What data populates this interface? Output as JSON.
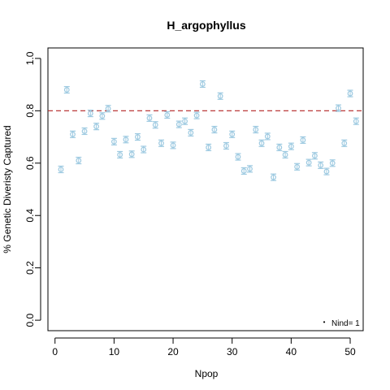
{
  "chart_data": {
    "type": "scatter",
    "title": "H_argophyllus",
    "xlabel": "Npop",
    "ylabel": "% Genetic Diveristy Captured",
    "xlim": [
      -1.2,
      52.2
    ],
    "ylim": [
      -0.04,
      1.04
    ],
    "xticks": [
      0,
      10,
      20,
      30,
      40,
      50
    ],
    "yticks": [
      0.0,
      0.2,
      0.4,
      0.6,
      0.8,
      1.0
    ],
    "xtick_labels": [
      "0",
      "10",
      "20",
      "30",
      "40",
      "50"
    ],
    "ytick_labels": [
      "0.0",
      "0.2",
      "0.4",
      "0.6",
      "0.8",
      "1.0"
    ],
    "reference_line": {
      "y": 0.8,
      "style": "dashed",
      "color": "#B22222"
    },
    "marker_color": "#9ECAE1",
    "legend": {
      "position": "bottom-right",
      "label": "Nind= 1"
    },
    "series": [
      {
        "name": "Nind= 1",
        "x": [
          1,
          2,
          3,
          4,
          5,
          6,
          7,
          8,
          9,
          10,
          11,
          12,
          13,
          14,
          15,
          16,
          17,
          18,
          19,
          20,
          21,
          22,
          23,
          24,
          25,
          26,
          27,
          28,
          29,
          30,
          31,
          32,
          33,
          34,
          35,
          36,
          37,
          38,
          39,
          40,
          41,
          42,
          43,
          44,
          45,
          46,
          47,
          48,
          49,
          50,
          51
        ],
        "y": [
          0.576,
          0.88,
          0.71,
          0.61,
          0.722,
          0.79,
          0.74,
          0.78,
          0.808,
          0.682,
          0.632,
          0.69,
          0.634,
          0.7,
          0.652,
          0.772,
          0.746,
          0.676,
          0.784,
          0.668,
          0.748,
          0.76,
          0.716,
          0.782,
          0.902,
          0.66,
          0.728,
          0.856,
          0.666,
          0.71,
          0.624,
          0.57,
          0.578,
          0.728,
          0.676,
          0.702,
          0.546,
          0.66,
          0.632,
          0.664,
          0.586,
          0.688,
          0.602,
          0.628,
          0.592,
          0.568,
          0.6,
          0.81,
          0.676,
          0.866,
          0.76
        ]
      }
    ]
  }
}
